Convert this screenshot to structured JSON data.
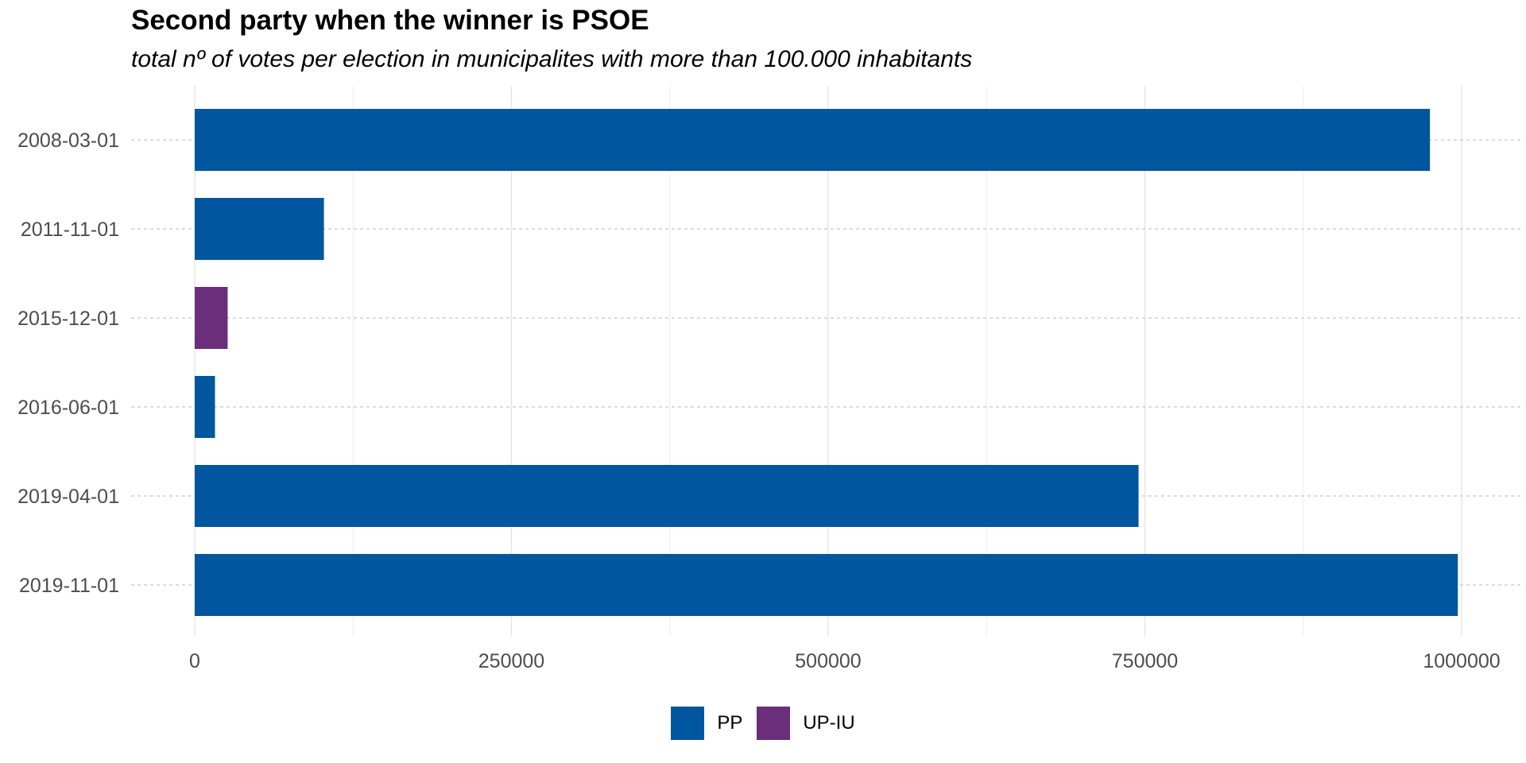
{
  "chart_data": {
    "type": "bar",
    "orientation": "horizontal",
    "title": "Second party when the winner is PSOE",
    "subtitle": "total nº of votes per election in municipalites with more than 100.000 inhabitants",
    "xlabel": "",
    "ylabel": "",
    "xlim": [
      0,
      1000000
    ],
    "x_ticks": [
      0,
      250000,
      500000,
      750000,
      1000000
    ],
    "x_tick_labels": [
      "0",
      "250000",
      "500000",
      "750000",
      "1000000"
    ],
    "categories": [
      "2008-03-01",
      "2011-11-01",
      "2015-12-01",
      "2016-06-01",
      "2019-04-01",
      "2019-11-01"
    ],
    "bars": [
      {
        "category": "2008-03-01",
        "party": "PP",
        "value": 975000
      },
      {
        "category": "2011-11-01",
        "party": "PP",
        "value": 102000
      },
      {
        "category": "2015-12-01",
        "party": "UP-IU",
        "value": 26000
      },
      {
        "category": "2016-06-01",
        "party": "PP",
        "value": 16000
      },
      {
        "category": "2019-04-01",
        "party": "PP",
        "value": 745000
      },
      {
        "category": "2019-11-01",
        "party": "PP",
        "value": 997000
      }
    ],
    "grid": true,
    "legend_position": "bottom",
    "legend": [
      {
        "name": "PP",
        "color": "#00569f"
      },
      {
        "name": "UP-IU",
        "color": "#6a2e7a"
      }
    ]
  }
}
